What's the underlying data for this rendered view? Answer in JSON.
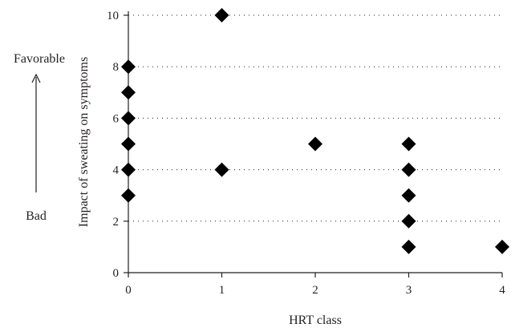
{
  "chart_data": {
    "type": "scatter",
    "xlabel": "HRT class",
    "ylabel": "Impact of sweating on symptoms",
    "xlim": [
      0,
      4
    ],
    "ylim": [
      0,
      10
    ],
    "x_ticks": [
      "0",
      "1",
      "2",
      "3",
      "4"
    ],
    "y_ticks": [
      "0",
      "2",
      "4",
      "6",
      "8",
      "10"
    ],
    "grid": "horizontal dotted",
    "marker": "diamond",
    "marker_color": "#000000",
    "annotations": {
      "top": "Favorable",
      "bottom": "Bad",
      "arrow": "up-arrow"
    },
    "series": [
      {
        "points": [
          {
            "x": 0,
            "y": 8
          },
          {
            "x": 0,
            "y": 7
          },
          {
            "x": 0,
            "y": 6
          },
          {
            "x": 0,
            "y": 5
          },
          {
            "x": 0,
            "y": 4
          },
          {
            "x": 0,
            "y": 3
          },
          {
            "x": 1,
            "y": 10
          },
          {
            "x": 1,
            "y": 4
          },
          {
            "x": 2,
            "y": 5
          },
          {
            "x": 3,
            "y": 5
          },
          {
            "x": 3,
            "y": 4
          },
          {
            "x": 3,
            "y": 3
          },
          {
            "x": 3,
            "y": 2
          },
          {
            "x": 3,
            "y": 1
          },
          {
            "x": 4,
            "y": 1
          }
        ]
      }
    ]
  }
}
